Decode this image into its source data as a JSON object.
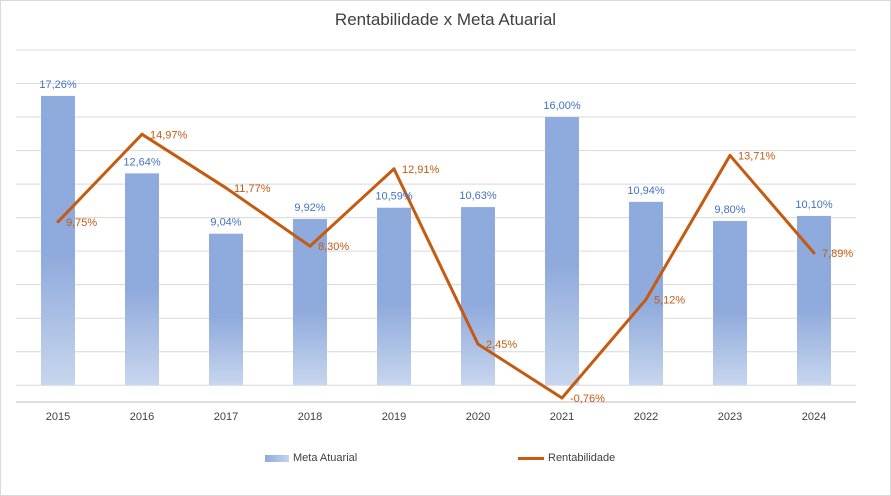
{
  "title": "Rentabilidade x Meta Atuarial",
  "colors": {
    "bar": "#8faadc",
    "bar_light": "#c8d6ee",
    "line": "#c55a11",
    "bar_label": "#4472c4",
    "line_label": "#c55a11",
    "grid": "#d9d9d9",
    "axis_text": "#404040"
  },
  "chart_data": {
    "type": "bar",
    "title": "Rentabilidade x Meta Atuarial",
    "categories": [
      "2015",
      "2016",
      "2017",
      "2018",
      "2019",
      "2020",
      "2021",
      "2022",
      "2023",
      "2024"
    ],
    "series": [
      {
        "name": "Meta Atuarial",
        "kind": "bar",
        "values": [
          17.26,
          12.64,
          9.04,
          9.92,
          10.59,
          10.63,
          16.0,
          10.94,
          9.8,
          10.1
        ],
        "labels": [
          "17,26%",
          "12,64%",
          "9,04%",
          "9,92%",
          "10,59%",
          "10,63%",
          "16,00%",
          "10,94%",
          "9,80%",
          "10,10%"
        ]
      },
      {
        "name": "Rentabilidade",
        "kind": "line",
        "values": [
          9.75,
          14.97,
          11.77,
          8.3,
          12.91,
          2.45,
          -0.76,
          5.12,
          13.71,
          7.89
        ],
        "labels": [
          "9,75%",
          "14,97%",
          "11,77%",
          "8,30%",
          "12,91%",
          "2,45%",
          "-0,76%",
          "5,12%",
          "13,71%",
          "7,89%"
        ]
      }
    ],
    "ylim": [
      -1,
      20
    ],
    "grid": true,
    "y_tick_labels_visible": false,
    "legend_position": "bottom"
  }
}
